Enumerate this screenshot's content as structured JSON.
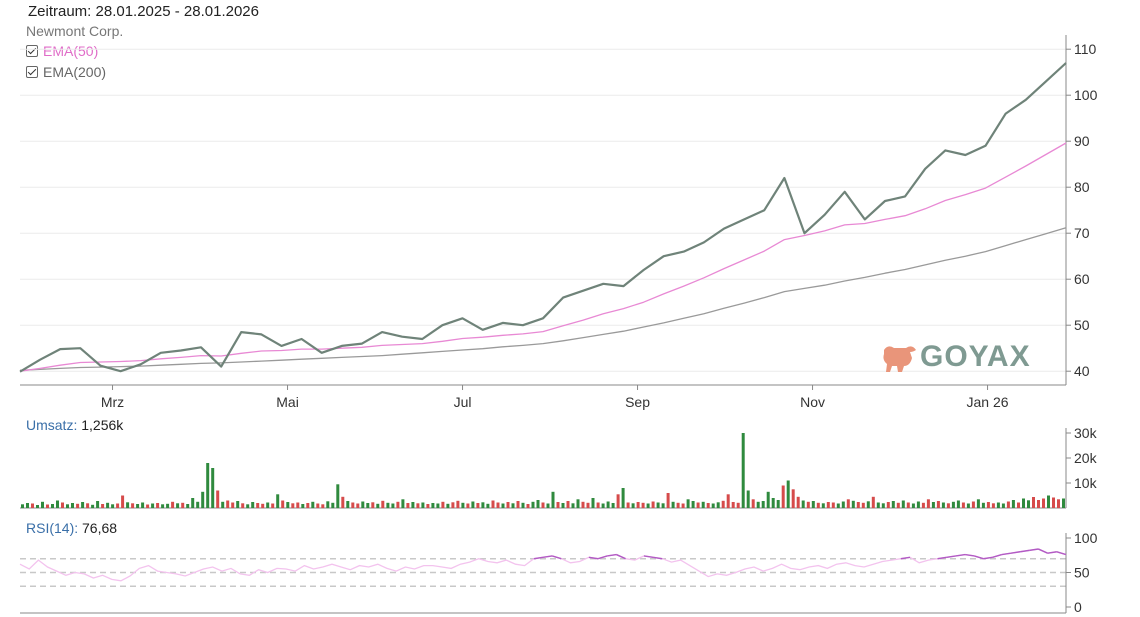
{
  "header": {
    "zeitraum": "Zeitraum: 28.01.2025 - 28.01.2026",
    "instrument": "Newmont Corp."
  },
  "legend": {
    "ema50": "EMA(50)",
    "ema200": "EMA(200)"
  },
  "logo": "GOYAX",
  "volume_label": {
    "key": "Umsatz:",
    "value": "1,256k"
  },
  "rsi_label": {
    "key": "RSI(14):",
    "value": "76,68"
  },
  "colors": {
    "price": "#6f8379",
    "ema50": "#e889d4",
    "ema200": "#9a9a9a",
    "vol_up": "#2f8a3e",
    "vol_down": "#d64b4b",
    "rsi": "#f3c3ee",
    "rsi_high": "#b25bc4",
    "logo_bull": "#e9957a"
  },
  "chart_data": [
    {
      "type": "line",
      "title": "Newmont Corp.",
      "x": [
        "28.01.2025",
        "04.02.2025",
        "11.02.2025",
        "18.02.2025",
        "25.02.2025",
        "04.03.2025",
        "11.03.2025",
        "18.03.2025",
        "25.03.2025",
        "01.04.2025",
        "08.04.2025",
        "15.04.2025",
        "22.04.2025",
        "29.04.2025",
        "06.05.2025",
        "13.05.2025",
        "20.05.2025",
        "27.05.2025",
        "03.06.2025",
        "10.06.2025",
        "17.06.2025",
        "24.06.2025",
        "01.07.2025",
        "08.07.2025",
        "15.07.2025",
        "22.07.2025",
        "29.07.2025",
        "05.08.2025",
        "12.08.2025",
        "19.08.2025",
        "26.08.2025",
        "02.09.2025",
        "09.09.2025",
        "16.09.2025",
        "23.09.2025",
        "30.09.2025",
        "07.10.2025",
        "14.10.2025",
        "21.10.2025",
        "28.10.2025",
        "04.11.2025",
        "11.11.2025",
        "18.11.2025",
        "25.11.2025",
        "02.12.2025",
        "09.12.2025",
        "16.12.2025",
        "23.12.2025",
        "30.12.2025",
        "06.01.2026",
        "13.01.2026",
        "20.01.2026",
        "27.01.2026"
      ],
      "series": [
        {
          "name": "Newmont Corp.",
          "values": [
            39.9,
            42.5,
            44.8,
            45.0,
            41.2,
            40.0,
            41.5,
            44.0,
            44.5,
            45.2,
            41.0,
            48.5,
            48.0,
            45.5,
            47.0,
            44.0,
            45.5,
            46.0,
            48.5,
            47.5,
            47.0,
            50.0,
            51.5,
            49.0,
            50.5,
            50.0,
            51.5,
            56.0,
            57.5,
            59.0,
            58.5,
            62.0,
            65.0,
            66.0,
            68.0,
            71.0,
            73.0,
            75.0,
            82.0,
            70.0,
            74.0,
            79.0,
            73.0,
            77.0,
            78.0,
            84.0,
            88.0,
            87.0,
            89.0,
            96.0,
            99.0,
            103.0,
            107.0
          ]
        },
        {
          "name": "EMA(50)",
          "values": [
            40.0,
            40.6,
            41.3,
            41.9,
            42.0,
            42.1,
            42.3,
            42.7,
            43.0,
            43.4,
            43.3,
            43.9,
            44.4,
            44.5,
            44.8,
            44.8,
            45.0,
            45.2,
            45.6,
            45.8,
            46.0,
            46.5,
            47.1,
            47.4,
            47.8,
            48.1,
            48.6,
            49.9,
            51.1,
            52.5,
            53.6,
            55.0,
            56.8,
            58.5,
            60.3,
            62.3,
            64.2,
            66.1,
            68.6,
            69.5,
            70.5,
            71.8,
            72.1,
            73.0,
            73.8,
            75.3,
            77.1,
            78.4,
            79.8,
            82.2,
            84.6,
            87.1,
            89.6
          ]
        },
        {
          "name": "EMA(200)",
          "values": [
            40.2,
            40.4,
            40.6,
            40.8,
            40.9,
            41.0,
            41.1,
            41.3,
            41.5,
            41.7,
            41.8,
            42.0,
            42.2,
            42.4,
            42.6,
            42.8,
            43.0,
            43.2,
            43.4,
            43.7,
            44.0,
            44.3,
            44.6,
            44.9,
            45.3,
            45.6,
            46.0,
            46.6,
            47.3,
            48.0,
            48.7,
            49.6,
            50.5,
            51.5,
            52.5,
            53.7,
            54.8,
            56.0,
            57.3,
            58.0,
            58.7,
            59.6,
            60.4,
            61.3,
            62.1,
            63.1,
            64.1,
            65.0,
            66.0,
            67.3,
            68.6,
            69.9,
            71.2
          ]
        }
      ],
      "xticks": [
        "Mrz",
        "Mai",
        "Jul",
        "Sep",
        "Nov",
        "Jan 26"
      ],
      "yticks": [
        "40",
        "50",
        "60",
        "70",
        "80",
        "90",
        "100",
        "110"
      ],
      "ylim": [
        37,
        112
      ],
      "grid": true,
      "legend": "top-left"
    },
    {
      "type": "bar",
      "title": "Umsatz",
      "values": [
        1.5,
        2,
        1.8,
        1.2,
        2.5,
        1.4,
        1.6,
        3,
        2.2,
        1.5,
        2,
        1.7,
        2.4,
        1.9,
        1.3,
        2.8,
        1.6,
        2.1,
        1.5,
        1.8,
        5,
        2.3,
        1.9,
        1.6,
        2.2,
        1.4,
        1.8,
        2,
        1.5,
        1.7,
        2.5,
        1.9,
        2.1,
        1.6,
        4,
        2.5,
        6.5,
        18,
        16,
        7,
        2.5,
        3,
        2.2,
        2.8,
        1.9,
        1.5,
        2.4,
        2,
        1.7,
        2.2,
        1.8,
        5.5,
        3,
        2.4,
        1.9,
        2.2,
        1.6,
        2,
        2.5,
        1.8,
        1.5,
        2.7,
        2.1,
        9.5,
        4.5,
        2.8,
        2.2,
        1.8,
        2.6,
        2,
        2.3,
        1.7,
        2.9,
        2.1,
        1.8,
        2.5,
        3.5,
        2,
        2.4,
        1.9,
        2.2,
        1.6,
        2,
        1.8,
        2.5,
        1.7,
        2.3,
        2.9,
        2.1,
        1.8,
        2.6,
        2,
        2.3,
        1.7,
        3,
        2.2,
        1.8,
        2.4,
        1.9,
        2.8,
        2.1,
        1.6,
        2.5,
        3.2,
        2.2,
        1.8,
        6.5,
        2.4,
        2,
        2.8,
        1.9,
        3.5,
        2.5,
        2.1,
        4,
        2.2,
        1.8,
        2.6,
        2,
        5.5,
        8,
        2.2,
        1.9,
        2.4,
        2.1,
        1.8,
        2.6,
        2.2,
        1.9,
        6,
        2.5,
        2.1,
        1.8,
        3.5,
        2.8,
        2.2,
        2.5,
        2,
        1.8,
        2.3,
        2.9,
        5.5,
        2.4,
        2.1,
        30,
        7,
        3.5,
        2.5,
        2.8,
        6.5,
        4,
        3.2,
        9,
        11,
        7.5,
        4.5,
        3,
        2.5,
        2.8,
        2.1,
        1.9,
        2.4,
        2.2,
        1.8,
        2.6,
        3.5,
        2.9,
        2.4,
        2.1,
        2.7,
        4.5,
        2.2,
        1.9,
        2.4,
        2.8,
        2.1,
        3,
        2.2,
        1.8,
        2.6,
        2.1,
        3.5,
        2.4,
        2.8,
        2.2,
        1.9,
        2.5,
        3,
        2.2,
        1.8,
        2.6,
        3.5,
        2.1,
        2.4,
        1.9,
        2.2,
        1.8,
        2.6,
        3.2,
        2.2,
        3.8,
        3.1,
        4.4,
        3.2,
        3.8,
        5,
        4.2,
        3.5,
        3.8
      ],
      "up": [
        1,
        1,
        0,
        1,
        1,
        0,
        1,
        1,
        0,
        1,
        1,
        0,
        1,
        0,
        1,
        1,
        0,
        1,
        1,
        0,
        0,
        1,
        0,
        1,
        1,
        0,
        1,
        0,
        1,
        1,
        0,
        1,
        0,
        1,
        1,
        1,
        1,
        1,
        1,
        0,
        1,
        0,
        0,
        1,
        0,
        1,
        1,
        0,
        0,
        1,
        0,
        1,
        0,
        1,
        0,
        0,
        1,
        0,
        1,
        0,
        0,
        1,
        1,
        1,
        0,
        1,
        0,
        0,
        1,
        1,
        0,
        1,
        0,
        1,
        1,
        0,
        1,
        0,
        1,
        0,
        1,
        0,
        1,
        1,
        0,
        1,
        0,
        0,
        1,
        0,
        1,
        0,
        1,
        1,
        0,
        0,
        1,
        0,
        1,
        0,
        1,
        0,
        1,
        1,
        0,
        1,
        1,
        0,
        1,
        0,
        1,
        1,
        0,
        0,
        1,
        0,
        1,
        1,
        1,
        0,
        1,
        0,
        1,
        0,
        0,
        1,
        0,
        1,
        1,
        0,
        1,
        0,
        0,
        1,
        1,
        0,
        1,
        0,
        1,
        1,
        0,
        0,
        0,
        0,
        1,
        1,
        0,
        1,
        1,
        1,
        1,
        1,
        0,
        1,
        0,
        0,
        1,
        0,
        1,
        0,
        1,
        0,
        0,
        1,
        1,
        0,
        1,
        0,
        0,
        1,
        0,
        1,
        1,
        0,
        1,
        0,
        1,
        0,
        1,
        1,
        0,
        0,
        1,
        0,
        1,
        0,
        1,
        1,
        0,
        1,
        0,
        1,
        1,
        0,
        0,
        1,
        1,
        0,
        1,
        0,
        1,
        1,
        0,
        0,
        0,
        1,
        0,
        0,
        1,
        1,
        1,
        1,
        0,
        1,
        1,
        1,
        0,
        1,
        1,
        1,
        0
      ],
      "yticks": [
        "10k",
        "20k",
        "30k"
      ],
      "ylim": [
        0,
        32
      ],
      "unit": "k"
    },
    {
      "type": "line",
      "title": "RSI(14)",
      "values": [
        62,
        55,
        68,
        58,
        52,
        46,
        50,
        48,
        42,
        46,
        40,
        38,
        45,
        56,
        60,
        52,
        50,
        48,
        45,
        50,
        55,
        58,
        52,
        56,
        48,
        46,
        54,
        50,
        56,
        55,
        52,
        60,
        55,
        58,
        62,
        58,
        54,
        60,
        58,
        62,
        56,
        52,
        58,
        55,
        60,
        60,
        58,
        56,
        62,
        65,
        70,
        66,
        64,
        68,
        62,
        60,
        70,
        72,
        74,
        70,
        64,
        66,
        72,
        70,
        74,
        76,
        70,
        68,
        74,
        72,
        70,
        65,
        68,
        60,
        52,
        44,
        48,
        46,
        50,
        55,
        58,
        52,
        56,
        62,
        56,
        54,
        58,
        60,
        56,
        62,
        64,
        60,
        58,
        62,
        66,
        68,
        70,
        72,
        64,
        68,
        70,
        72,
        74,
        76,
        74,
        70,
        72,
        76,
        78,
        80,
        82,
        84,
        78,
        80,
        76
      ],
      "yticks": [
        "0",
        "50",
        "100"
      ],
      "ylim": [
        0,
        100
      ],
      "reference_lines": [
        30,
        50,
        70
      ]
    }
  ]
}
